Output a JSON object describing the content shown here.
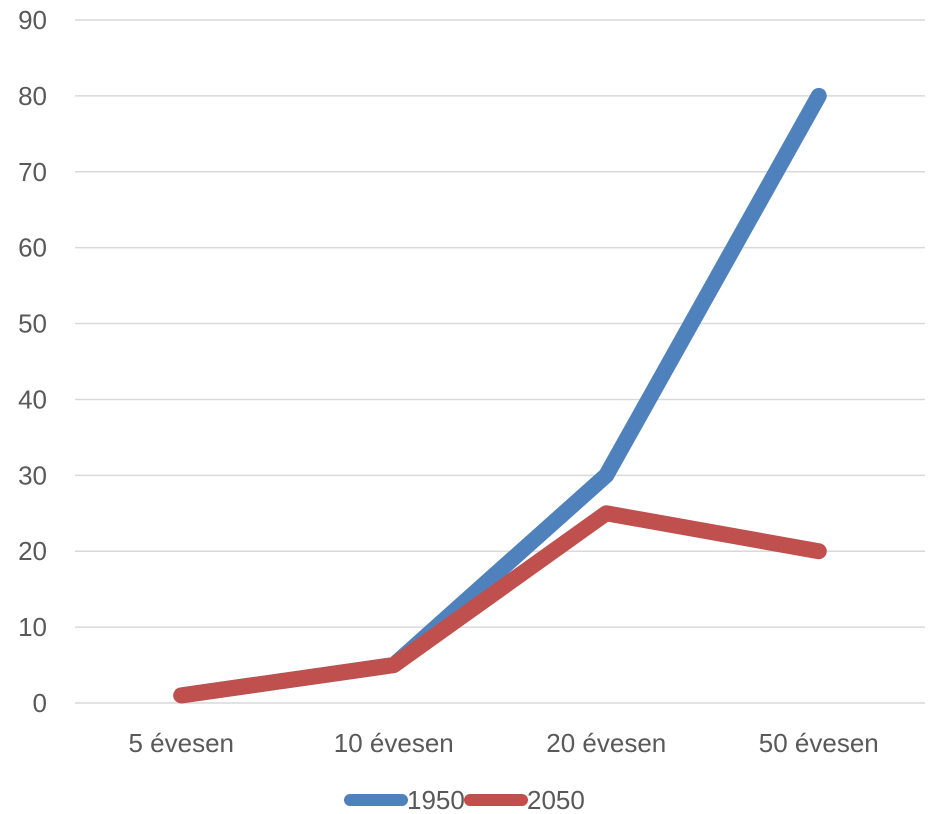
{
  "chart_data": {
    "type": "line",
    "title": "",
    "xlabel": "",
    "ylabel": "",
    "categories": [
      "5 évesen",
      "10 évesen",
      "20 évesen",
      "50 évesen"
    ],
    "series": [
      {
        "name": "1950",
        "values": [
          1,
          5,
          30,
          80
        ],
        "color": "#4f81bd"
      },
      {
        "name": "2050",
        "values": [
          1,
          5,
          25,
          20
        ],
        "color": "#c0504d"
      }
    ],
    "ylim": [
      0,
      90
    ],
    "yticks": [
      0,
      10,
      20,
      30,
      40,
      50,
      60,
      70,
      80,
      90
    ],
    "grid": true,
    "legend_position": "bottom"
  }
}
